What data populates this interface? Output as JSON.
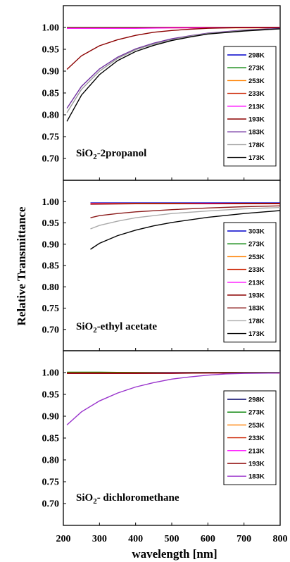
{
  "figure": {
    "ylabel": "Relative Transmittance",
    "xlabel": "wavelength [nm]",
    "x_ticks": [
      "200",
      "300",
      "400",
      "500",
      "600",
      "700",
      "800"
    ],
    "y_ticks": [
      "0.70",
      "0.75",
      "0.80",
      "0.85",
      "0.90",
      "0.95",
      "1.00"
    ]
  },
  "chart_data": [
    {
      "type": "line",
      "label_parts": [
        "SiO",
        "2",
        "-2propanol"
      ],
      "xlabel": "wavelength [nm]",
      "ylabel": "Relative Transmittance",
      "xlim": [
        200,
        800
      ],
      "ylim": [
        0.65,
        1.05
      ],
      "grid": false,
      "legend_position": "right",
      "series": [
        {
          "name": "298K",
          "color": "#0000cc",
          "x": [
            210,
            300,
            400,
            500,
            600,
            700,
            800
          ],
          "y": [
            1.0,
            1.0,
            1.0,
            1.0,
            1.0,
            1.0,
            1.0
          ]
        },
        {
          "name": "273K",
          "color": "#008000",
          "x": [
            210,
            300,
            400,
            500,
            600,
            700,
            800
          ],
          "y": [
            1.0,
            1.0,
            1.0,
            1.0,
            1.0,
            1.0,
            1.0
          ]
        },
        {
          "name": "253K",
          "color": "#ff8000",
          "x": [
            210,
            300,
            400,
            500,
            600,
            700,
            800
          ],
          "y": [
            0.999,
            0.999,
            0.999,
            0.999,
            0.999,
            0.999,
            0.999
          ]
        },
        {
          "name": "233K",
          "color": "#cc2200",
          "x": [
            210,
            300,
            400,
            500,
            600,
            700,
            800
          ],
          "y": [
            0.999,
            0.999,
            0.999,
            1.0,
            1.0,
            1.0,
            1.0
          ]
        },
        {
          "name": "213K",
          "color": "#ff00ff",
          "x": [
            210,
            300,
            400,
            500,
            600,
            700,
            800
          ],
          "y": [
            0.998,
            0.998,
            0.998,
            0.999,
            0.999,
            1.0,
            1.0
          ]
        },
        {
          "name": "193K",
          "color": "#8b0000",
          "x": [
            210,
            250,
            300,
            350,
            400,
            450,
            500,
            550,
            600,
            700,
            800
          ],
          "y": [
            0.904,
            0.935,
            0.958,
            0.972,
            0.982,
            0.989,
            0.993,
            0.996,
            0.998,
            1.0,
            1.0
          ]
        },
        {
          "name": "183K",
          "color": "#7030a0",
          "x": [
            210,
            250,
            300,
            350,
            400,
            450,
            500,
            550,
            600,
            700,
            800
          ],
          "y": [
            0.815,
            0.865,
            0.905,
            0.932,
            0.951,
            0.964,
            0.974,
            0.981,
            0.987,
            0.994,
            0.998
          ]
        },
        {
          "name": "178K",
          "color": "#999999",
          "x": [
            210,
            250,
            300,
            350,
            400,
            450,
            500,
            550,
            600,
            700,
            800
          ],
          "y": [
            0.805,
            0.858,
            0.9,
            0.929,
            0.949,
            0.962,
            0.972,
            0.98,
            0.986,
            0.993,
            0.997
          ]
        },
        {
          "name": "173K",
          "color": "#000000",
          "x": [
            210,
            250,
            300,
            350,
            400,
            450,
            500,
            550,
            600,
            700,
            800
          ],
          "y": [
            0.785,
            0.845,
            0.892,
            0.924,
            0.945,
            0.959,
            0.97,
            0.978,
            0.985,
            0.992,
            0.997
          ]
        }
      ]
    },
    {
      "type": "line",
      "label_parts": [
        "SiO",
        "2",
        "-ethyl acetate"
      ],
      "xlabel": "wavelength [nm]",
      "ylabel": "Relative Transmittance",
      "xlim": [
        200,
        800
      ],
      "ylim": [
        0.65,
        1.05
      ],
      "grid": false,
      "legend_position": "right",
      "series": [
        {
          "name": "303K",
          "color": "#0000cc",
          "x": [
            275,
            400,
            500,
            600,
            700,
            800
          ],
          "y": [
            0.997,
            0.997,
            0.997,
            0.997,
            0.997,
            0.997
          ]
        },
        {
          "name": "273K",
          "color": "#008000",
          "x": [
            275,
            400,
            500,
            600,
            700,
            800
          ],
          "y": [
            0.996,
            0.996,
            0.996,
            0.996,
            0.996,
            0.996
          ]
        },
        {
          "name": "253K",
          "color": "#ff8000",
          "x": [
            275,
            400,
            500,
            600,
            700,
            800
          ],
          "y": [
            0.996,
            0.996,
            0.996,
            0.996,
            0.996,
            0.996
          ]
        },
        {
          "name": "233K",
          "color": "#cc2200",
          "x": [
            275,
            400,
            500,
            600,
            700,
            800
          ],
          "y": [
            0.995,
            0.995,
            0.995,
            0.995,
            0.995,
            0.995
          ]
        },
        {
          "name": "213K",
          "color": "#ff00ff",
          "x": [
            275,
            400,
            500,
            600,
            700,
            800
          ],
          "y": [
            0.995,
            0.995,
            0.995,
            0.996,
            0.996,
            0.996
          ]
        },
        {
          "name": "193K",
          "color": "#8b0000",
          "x": [
            275,
            400,
            500,
            600,
            700,
            800
          ],
          "y": [
            0.994,
            0.995,
            0.995,
            0.995,
            0.996,
            0.996
          ]
        },
        {
          "name": "183K",
          "color": "#8b1a1a",
          "x": [
            275,
            300,
            350,
            400,
            500,
            600,
            700,
            800
          ],
          "y": [
            0.962,
            0.967,
            0.972,
            0.976,
            0.981,
            0.985,
            0.988,
            0.99
          ]
        },
        {
          "name": "178K",
          "color": "#aaaaaa",
          "x": [
            275,
            300,
            350,
            400,
            500,
            600,
            700,
            800
          ],
          "y": [
            0.936,
            0.944,
            0.954,
            0.962,
            0.972,
            0.978,
            0.983,
            0.986
          ]
        },
        {
          "name": "173K",
          "color": "#000000",
          "x": [
            275,
            300,
            350,
            400,
            450,
            500,
            600,
            700,
            800
          ],
          "y": [
            0.888,
            0.902,
            0.92,
            0.933,
            0.943,
            0.951,
            0.963,
            0.972,
            0.979
          ]
        }
      ]
    },
    {
      "type": "line",
      "label_parts": [
        "SiO",
        "2",
        "- dichloromethane"
      ],
      "xlabel": "wavelength [nm]",
      "ylabel": "Relative Transmittance",
      "xlim": [
        200,
        800
      ],
      "ylim": [
        0.65,
        1.05
      ],
      "grid": false,
      "legend_position": "right",
      "series": [
        {
          "name": "298K",
          "color": "#000066",
          "x": [
            210,
            300,
            400,
            500,
            600,
            700,
            800
          ],
          "y": [
            1.0,
            1.0,
            1.0,
            1.0,
            1.0,
            1.0,
            1.0
          ]
        },
        {
          "name": "273K",
          "color": "#008000",
          "x": [
            210,
            300,
            400,
            500,
            600,
            700,
            800
          ],
          "y": [
            1.001,
            1.001,
            1.0,
            1.0,
            1.0,
            1.0,
            1.0
          ]
        },
        {
          "name": "253K",
          "color": "#ff8000",
          "x": [
            210,
            300,
            400,
            500,
            600,
            700,
            800
          ],
          "y": [
            0.999,
            0.999,
            0.999,
            0.999,
            0.999,
            0.999,
            0.999
          ]
        },
        {
          "name": "233K",
          "color": "#cc2200",
          "x": [
            210,
            300,
            400,
            500,
            600,
            700,
            800
          ],
          "y": [
            0.999,
            0.999,
            0.999,
            0.999,
            0.999,
            0.999,
            0.999
          ]
        },
        {
          "name": "213K",
          "color": "#ff00ff",
          "x": [
            210,
            300,
            400,
            500,
            600,
            700,
            800
          ],
          "y": [
            0.998,
            0.998,
            0.998,
            0.999,
            0.999,
            0.999,
            0.999
          ]
        },
        {
          "name": "193K",
          "color": "#8b0000",
          "x": [
            210,
            300,
            400,
            500,
            600,
            700,
            800
          ],
          "y": [
            0.998,
            0.998,
            0.998,
            0.998,
            0.999,
            0.999,
            0.999
          ]
        },
        {
          "name": "183K",
          "color": "#9933cc",
          "x": [
            210,
            250,
            300,
            350,
            400,
            450,
            500,
            550,
            600,
            650,
            700,
            800
          ],
          "y": [
            0.88,
            0.91,
            0.935,
            0.953,
            0.967,
            0.977,
            0.985,
            0.99,
            0.994,
            0.997,
            0.998,
            0.999
          ]
        }
      ]
    }
  ]
}
